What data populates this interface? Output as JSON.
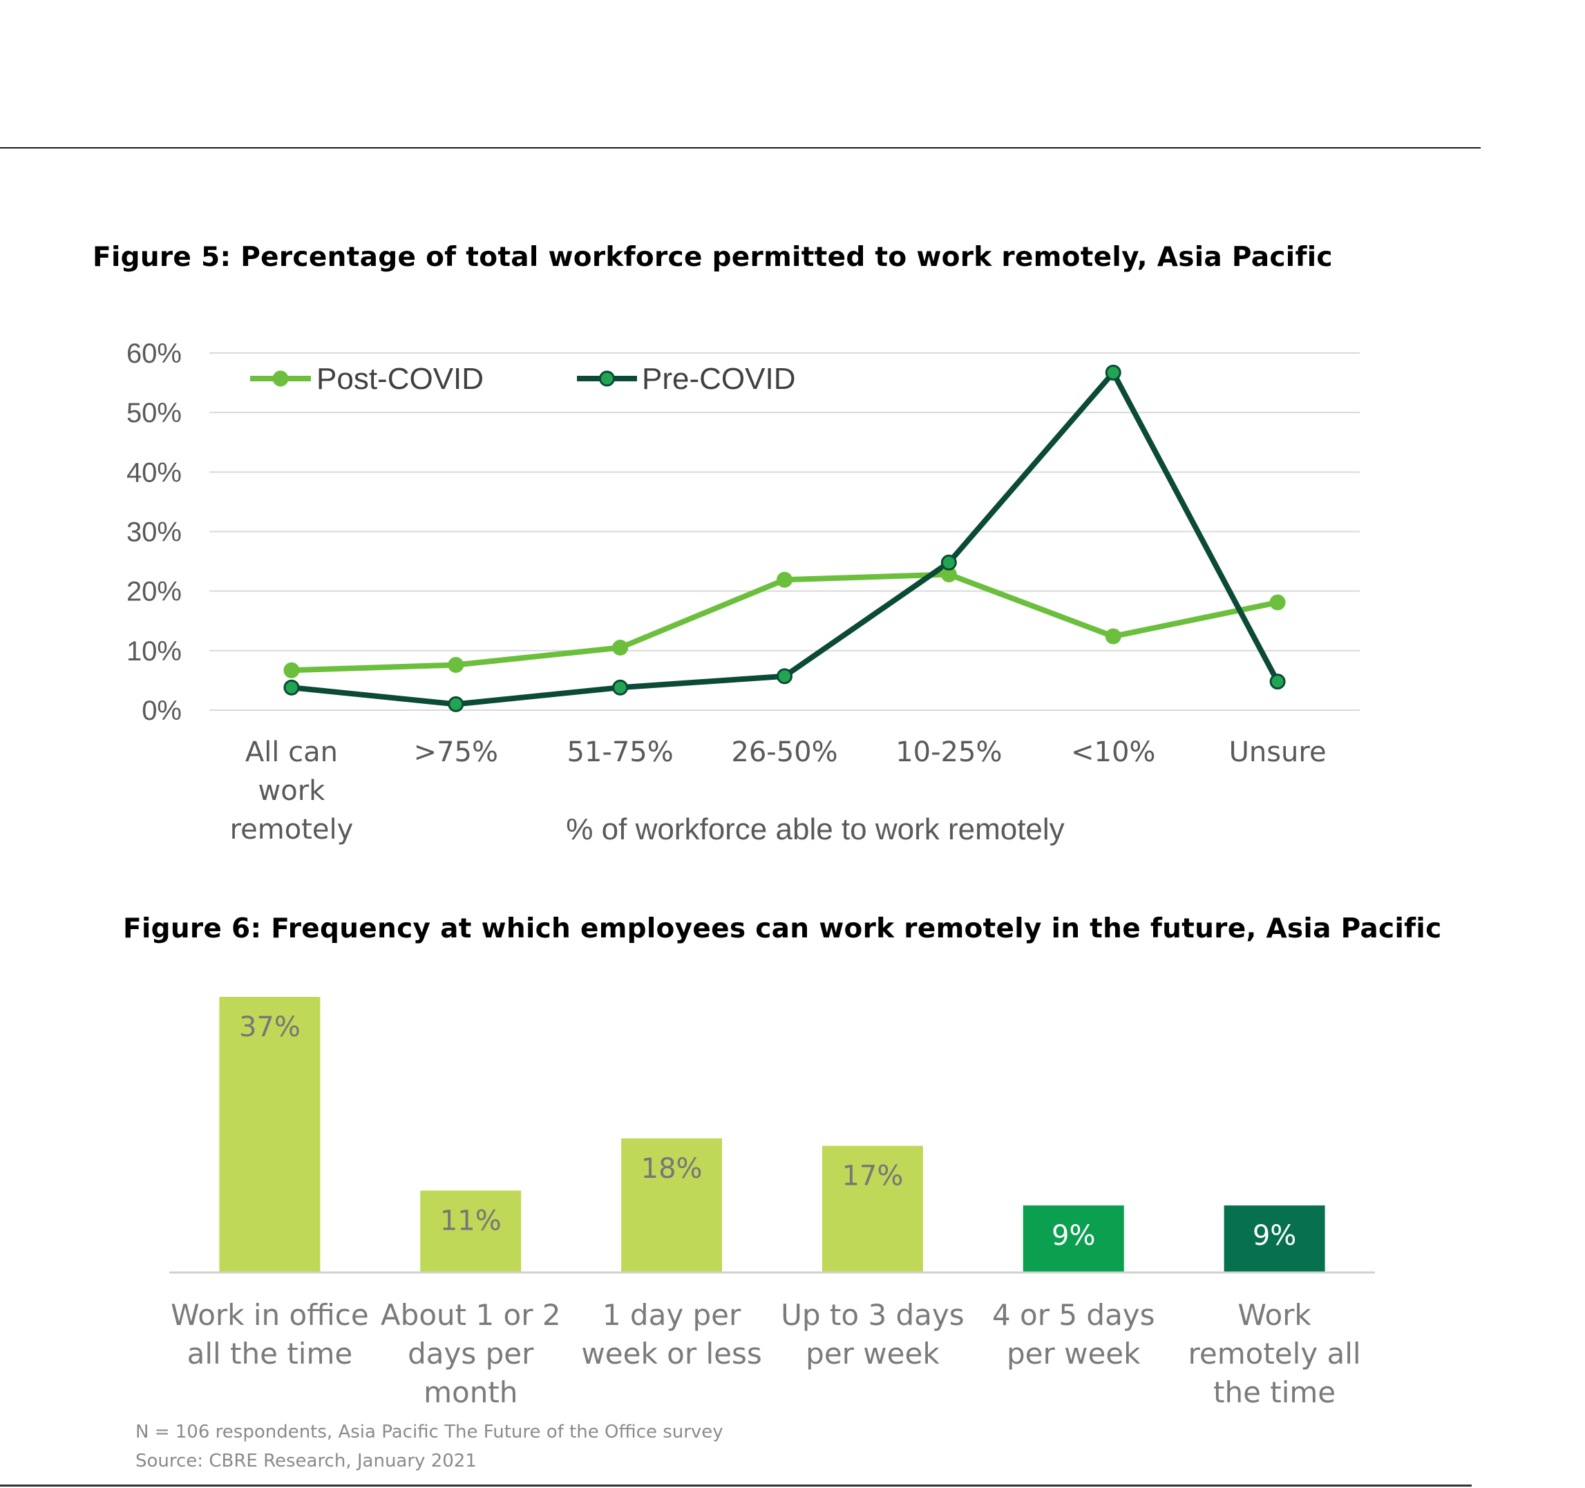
{
  "chart_data": [
    {
      "type": "line",
      "title": "Figure 5: Percentage of total workforce permitted to work remotely, Asia Pacific",
      "xlabel": "% of workforce able to work remotely",
      "ylabel": "",
      "ylim": [
        0,
        60
      ],
      "y_ticks": [
        "0%",
        "10%",
        "20%",
        "30%",
        "40%",
        "50%",
        "60%"
      ],
      "categories": [
        [
          "All can",
          "work",
          "remotely"
        ],
        [
          ">75%"
        ],
        [
          "51-75%"
        ],
        [
          "26-50%"
        ],
        [
          "10-25%"
        ],
        [
          "<10%"
        ],
        [
          "Unsure"
        ]
      ],
      "series": [
        {
          "name": "Post-COVID",
          "color": "#6cbf3c",
          "values": [
            6.7,
            7.6,
            10.5,
            21.9,
            22.8,
            12.4,
            18.1
          ]
        },
        {
          "name": "Pre-COVID",
          "color": "#0b4a36",
          "values": [
            3.8,
            1.0,
            3.8,
            5.7,
            24.8,
            56.7,
            4.8
          ]
        }
      ],
      "grid": true,
      "legend": "top-left"
    },
    {
      "type": "bar",
      "title": "Figure 6: Frequency at which employees can work remotely in the future, Asia Pacific",
      "xlabel": "",
      "ylabel": "",
      "ylim": [
        0,
        37
      ],
      "categories": [
        [
          "Work in office",
          "all the time"
        ],
        [
          "About 1 or 2",
          "days per",
          "month"
        ],
        [
          "1 day per",
          "week or less"
        ],
        [
          "Up to 3 days",
          "per week"
        ],
        [
          "4 or 5 days",
          "per week"
        ],
        [
          "Work",
          "remotely all",
          "the time"
        ]
      ],
      "values": [
        37,
        11,
        18,
        17,
        9,
        9
      ],
      "labels": [
        "37%",
        "11%",
        "18%",
        "17%",
        "9%",
        "9%"
      ],
      "colors": [
        "#c0d857",
        "#c0d857",
        "#c0d857",
        "#c0d857",
        "#0aa04f",
        "#07704f"
      ],
      "label_colors": [
        "#777777",
        "#777777",
        "#777777",
        "#777777",
        "#ffffff",
        "#ffffff"
      ]
    }
  ],
  "notes": {
    "n": "N = 106 respondents,  Asia Pacific The Future of the Office survey",
    "source": "Source: CBRE Research, January 2021"
  }
}
